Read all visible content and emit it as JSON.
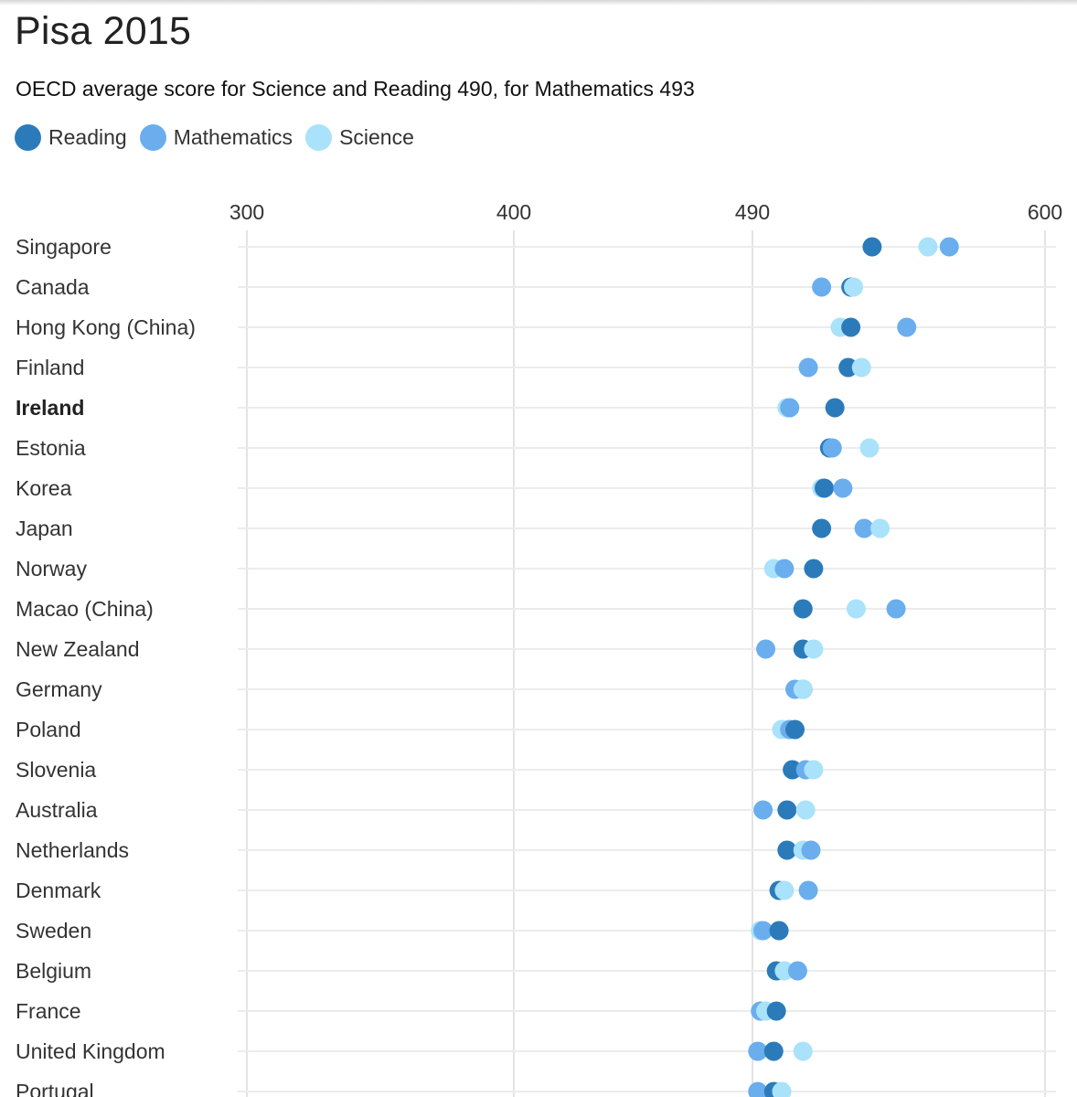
{
  "colors": {
    "reading": "#2b7bba",
    "mathematics": "#6aaeee",
    "science": "#a9e2fa"
  },
  "chart_data": {
    "type": "scatter",
    "title": "Pisa 2015",
    "subtitle": "OECD average score for Science and Reading 490, for Mathematics 493",
    "legend": [
      {
        "key": "reading",
        "label": "Reading"
      },
      {
        "key": "mathematics",
        "label": "Mathematics"
      },
      {
        "key": "science",
        "label": "Science"
      }
    ],
    "x_ticks": [
      300,
      400,
      490,
      600
    ],
    "xlim": [
      300,
      600
    ],
    "highlight": "Ireland",
    "countries": [
      {
        "name": "Singapore",
        "reading": 535,
        "mathematics": 564,
        "science": 556
      },
      {
        "name": "Canada",
        "reading": 527,
        "mathematics": 516,
        "science": 528
      },
      {
        "name": "Hong Kong (China)",
        "reading": 527,
        "mathematics": 548,
        "science": 523
      },
      {
        "name": "Finland",
        "reading": 526,
        "mathematics": 511,
        "science": 531
      },
      {
        "name": "Ireland",
        "reading": 521,
        "mathematics": 504,
        "science": 503
      },
      {
        "name": "Estonia",
        "reading": 519,
        "mathematics": 520,
        "science": 534
      },
      {
        "name": "Korea",
        "reading": 517,
        "mathematics": 524,
        "science": 516
      },
      {
        "name": "Japan",
        "reading": 516,
        "mathematics": 532,
        "science": 538
      },
      {
        "name": "Norway",
        "reading": 513,
        "mathematics": 502,
        "science": 498
      },
      {
        "name": "Macao (China)",
        "reading": 509,
        "mathematics": 544,
        "science": 529
      },
      {
        "name": "New Zealand",
        "reading": 509,
        "mathematics": 495,
        "science": 513
      },
      {
        "name": "Germany",
        "reading": 509,
        "mathematics": 506,
        "science": 509
      },
      {
        "name": "Poland",
        "reading": 506,
        "mathematics": 504,
        "science": 501
      },
      {
        "name": "Slovenia",
        "reading": 505,
        "mathematics": 510,
        "science": 513
      },
      {
        "name": "Australia",
        "reading": 503,
        "mathematics": 494,
        "science": 510
      },
      {
        "name": "Netherlands",
        "reading": 503,
        "mathematics": 512,
        "science": 509
      },
      {
        "name": "Denmark",
        "reading": 500,
        "mathematics": 511,
        "science": 502
      },
      {
        "name": "Sweden",
        "reading": 500,
        "mathematics": 494,
        "science": 493
      },
      {
        "name": "Belgium",
        "reading": 499,
        "mathematics": 507,
        "science": 502
      },
      {
        "name": "France",
        "reading": 499,
        "mathematics": 493,
        "science": 495
      },
      {
        "name": "United Kingdom",
        "reading": 498,
        "mathematics": 492,
        "science": 509
      },
      {
        "name": "Portugal",
        "reading": 498,
        "mathematics": 492,
        "science": 501
      }
    ]
  }
}
